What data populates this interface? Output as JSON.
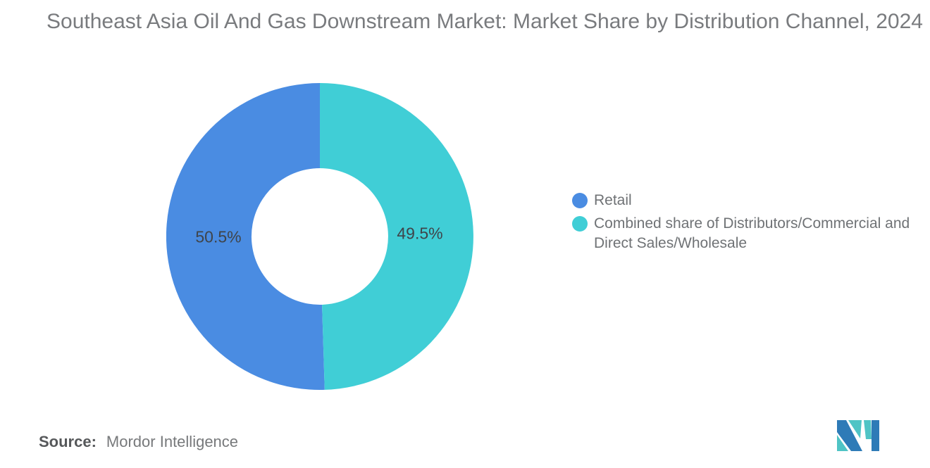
{
  "header": {
    "title": "Southeast Asia Oil And Gas Downstream Market: Market Share by Distribution Channel, 2024"
  },
  "chart_data": {
    "type": "pie",
    "subtype": "donut",
    "title": "Southeast Asia Oil And Gas Downstream Market: Market Share by Distribution Channel, 2024",
    "year": "2024",
    "unit": "%",
    "start_angle": "top",
    "first_slice_direction": "counterclockwise (Retail on left)",
    "inner_radius_ratio": 0.445,
    "legend_position": "right",
    "data_labels": "percent",
    "slices": [
      {
        "label": "Retail",
        "value": 50.5,
        "display": "50.5%",
        "color": "#4A8CE2"
      },
      {
        "label": "Combined share of Distributors/Commercial and Direct Sales/Wholesale",
        "value": 49.5,
        "display": "49.5%",
        "color": "#40CED6"
      }
    ]
  },
  "legend": {
    "items": [
      {
        "label": "Retail",
        "color": "#4A8CE2"
      },
      {
        "label": "Combined share of Distributors/Commercial and Direct Sales/Wholesale",
        "color": "#40CED6"
      }
    ]
  },
  "footer": {
    "source_label": "Source:",
    "source_value": "Mordor Intelligence"
  },
  "logo": {
    "name": "mordor-intelligence-logo",
    "blue": "#2E7BB7",
    "teal": "#4FC4C5"
  },
  "colors": {
    "background": "#FFFFFF",
    "title_text": "#797B7E",
    "legend_text": "#6F7275",
    "data_label_text": "#3F444A",
    "source_text": "#77797B"
  }
}
